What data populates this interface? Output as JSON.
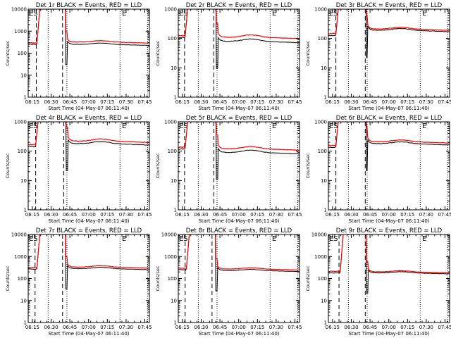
{
  "chart_data": {
    "type": "line",
    "common": {
      "title_suffix": "BLACK = Events, RED = LLD",
      "xlabel": "Start Time (04-May-07 06:11:40)",
      "ylabel": "Counts/sec",
      "yscale": "log",
      "x_unit": "minutes after 06:11:40",
      "x_ticks": [
        {
          "label": "06:15",
          "x": 3.33
        },
        {
          "label": "06:30",
          "x": 18.33
        },
        {
          "label": "06:45",
          "x": 33.33
        },
        {
          "label": "07:00",
          "x": 48.33
        },
        {
          "label": "07:15",
          "x": 63.33
        },
        {
          "label": "07:30",
          "x": 78.33
        },
        {
          "label": "07:45",
          "x": 93.33
        }
      ],
      "xlim": [
        0,
        97
      ],
      "segment_letters": [
        {
          "text": "E",
          "x": 0.6
        },
        {
          "text": "S",
          "x": 4.0
        },
        {
          "text": "E",
          "x": 75.0
        }
      ],
      "dotted_lines_x": [
        16.0,
        31.0,
        73.5,
        95.5
      ],
      "series_names": [
        "Events",
        "LLD"
      ],
      "series_colors": {
        "Events": "#000000",
        "LLD": "#ff0000"
      }
    },
    "panels": [
      {
        "title": "Det 1r",
        "ylim": [
          1,
          10000
        ],
        "y_ticks": [
          1,
          10,
          100,
          1000,
          10000
        ],
        "y_tick_labels": [
          "1",
          "10",
          "100",
          "1000",
          "10000"
        ],
        "dashed_lines_x": [
          6.5,
          27.5
        ],
        "spike_x": 9.5,
        "lld_level": 320,
        "events_level": 250,
        "pre_level": 280,
        "hump": 0.15,
        "gap": [
          30.0,
          31.5
        ]
      },
      {
        "title": "Det 2r",
        "ylim": [
          1,
          1000
        ],
        "y_ticks": [
          1,
          10,
          100,
          1000
        ],
        "y_tick_labels": [
          "1",
          "10",
          "100",
          "1000"
        ],
        "dashed_lines_x": [
          5.0,
          28.5
        ],
        "spike_x": 8.0,
        "lld_level": 110,
        "events_level": 80,
        "pre_level": 120,
        "hump": 0.2,
        "gap": [
          30.5,
          32.0
        ]
      },
      {
        "title": "Det 3r",
        "ylim": [
          1,
          1000
        ],
        "y_ticks": [
          1,
          10,
          100,
          1000
        ],
        "y_tick_labels": [
          "1",
          "10",
          "100",
          "1000"
        ],
        "dashed_lines_x": [
          6.0,
          29.5
        ],
        "spike_x": 8.5,
        "lld_level": 210,
        "events_level": 190,
        "pre_level": 140,
        "hump": 0.15,
        "gap": [
          30.5,
          31.5
        ]
      },
      {
        "title": "Det 4r",
        "ylim": [
          1,
          1000
        ],
        "y_ticks": [
          1,
          10,
          100,
          1000
        ],
        "y_tick_labels": [
          "1",
          "10",
          "100",
          "1000"
        ],
        "dashed_lines_x": [
          6.0,
          28.5
        ],
        "spike_x": 8.5,
        "lld_level": 220,
        "events_level": 180,
        "pre_level": 160,
        "hump": 0.18,
        "gap": [
          30.5,
          32.0
        ]
      },
      {
        "title": "Det 5r",
        "ylim": [
          1,
          1000
        ],
        "y_ticks": [
          1,
          10,
          100,
          1000
        ],
        "y_tick_labels": [
          "1",
          "10",
          "100",
          "1000"
        ],
        "dashed_lines_x": [
          5.0,
          28.5
        ],
        "spike_x": 8.0,
        "lld_level": 120,
        "events_level": 90,
        "pre_level": 130,
        "hump": 0.2,
        "gap": [
          30.5,
          32.0
        ]
      },
      {
        "title": "Det 6r",
        "ylim": [
          1,
          1000
        ],
        "y_ticks": [
          1,
          10,
          100,
          1000
        ],
        "y_tick_labels": [
          "1",
          "10",
          "100",
          "1000"
        ],
        "dashed_lines_x": [
          6.0,
          29.5
        ],
        "spike_x": 8.5,
        "lld_level": 210,
        "events_level": 180,
        "pre_level": 150,
        "hump": 0.15,
        "gap": [
          30.5,
          31.5
        ]
      },
      {
        "title": "Det 7r",
        "ylim": [
          1,
          10000
        ],
        "y_ticks": [
          1,
          10,
          100,
          1000,
          10000
        ],
        "y_tick_labels": [
          "1",
          "10",
          "100",
          "1000",
          "10000"
        ],
        "dashed_lines_x": [
          5.5,
          27.5
        ],
        "spike_x": 9.5,
        "lld_level": 330,
        "events_level": 280,
        "pre_level": 300,
        "hump": 0.15,
        "gap": [
          30.0,
          31.5
        ]
      },
      {
        "title": "Det 8r",
        "ylim": [
          1,
          10000
        ],
        "y_ticks": [
          1,
          10,
          100,
          1000,
          10000
        ],
        "y_tick_labels": [
          "1",
          "10",
          "100",
          "1000",
          "10000"
        ],
        "dashed_lines_x": [
          5.5,
          27.0
        ],
        "spike_x": 9.0,
        "lld_level": 270,
        "events_level": 230,
        "pre_level": 280,
        "hump": 0.13,
        "gap": [
          30.0,
          31.5
        ]
      },
      {
        "title": "Det 9r",
        "ylim": [
          1,
          10000
        ],
        "y_ticks": [
          1,
          10,
          100,
          1000,
          10000
        ],
        "y_tick_labels": [
          "1",
          "10",
          "100",
          "1000",
          "10000"
        ],
        "dashed_lines_x": [
          8.5,
          29.5
        ],
        "spike_x": 12.0,
        "lld_level": 200,
        "events_level": 180,
        "pre_level": 200,
        "hump": 0.13,
        "gap": [
          30.5,
          32.0
        ]
      }
    ]
  }
}
